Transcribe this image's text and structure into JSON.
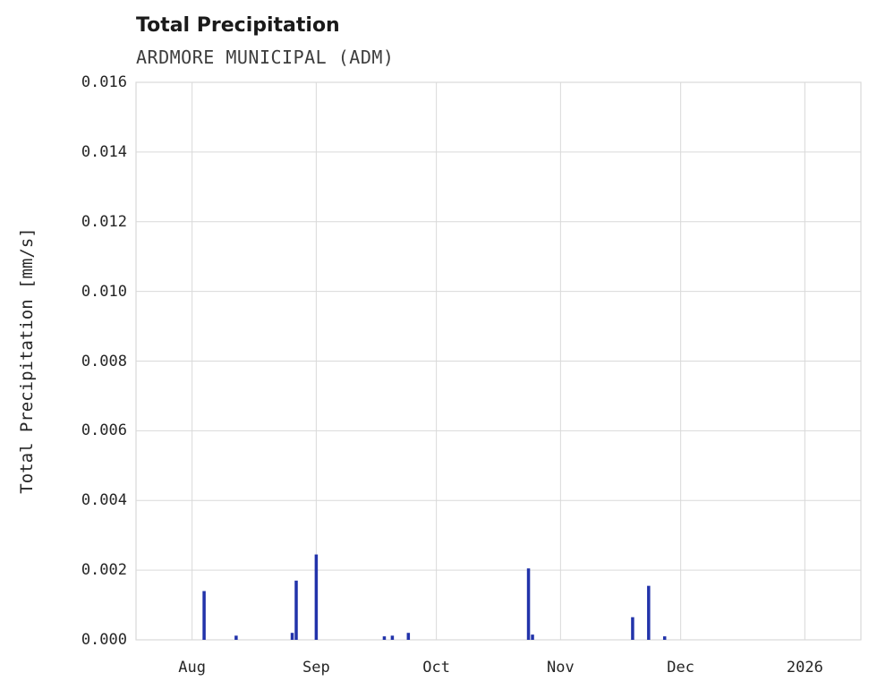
{
  "chart_data": {
    "type": "bar",
    "title": "Total Precipitation",
    "subtitle": "ARDMORE MUNICIPAL (ADM)",
    "xlabel": "",
    "ylabel": "Total Precipitation [mm/s]",
    "ylim": [
      0,
      0.016
    ],
    "grid": true,
    "legend": "none",
    "bar_color": "#2233aa",
    "grid_color": "#d9d9d9",
    "x_domain": [
      "2025-07-18",
      "2026-01-15"
    ],
    "x_ticks": [
      {
        "date": "2025-08-01",
        "label": "Aug"
      },
      {
        "date": "2025-09-01",
        "label": "Sep"
      },
      {
        "date": "2025-10-01",
        "label": "Oct"
      },
      {
        "date": "2025-11-01",
        "label": "Nov"
      },
      {
        "date": "2025-12-01",
        "label": "Dec"
      },
      {
        "date": "2026-01-01",
        "label": "2026"
      }
    ],
    "y_ticks": [
      {
        "v": 0.0,
        "label": "0.000"
      },
      {
        "v": 0.002,
        "label": "0.002"
      },
      {
        "v": 0.004,
        "label": "0.004"
      },
      {
        "v": 0.006,
        "label": "0.006"
      },
      {
        "v": 0.008,
        "label": "0.008"
      },
      {
        "v": 0.01,
        "label": "0.010"
      },
      {
        "v": 0.012,
        "label": "0.012"
      },
      {
        "v": 0.014,
        "label": "0.014"
      },
      {
        "v": 0.016,
        "label": "0.016"
      }
    ],
    "points": [
      {
        "date": "2025-08-04",
        "value": 0.0014
      },
      {
        "date": "2025-08-12",
        "value": 0.00012
      },
      {
        "date": "2025-08-26",
        "value": 0.0002
      },
      {
        "date": "2025-08-27",
        "value": 0.0017
      },
      {
        "date": "2025-09-01",
        "value": 0.00245
      },
      {
        "date": "2025-09-18",
        "value": 0.0001
      },
      {
        "date": "2025-09-20",
        "value": 0.00012
      },
      {
        "date": "2025-09-24",
        "value": 0.0002
      },
      {
        "date": "2025-10-24",
        "value": 0.00205
      },
      {
        "date": "2025-10-25",
        "value": 0.00015
      },
      {
        "date": "2025-11-19",
        "value": 0.00065
      },
      {
        "date": "2025-11-23",
        "value": 0.00155
      },
      {
        "date": "2025-11-27",
        "value": 0.0001
      }
    ]
  }
}
